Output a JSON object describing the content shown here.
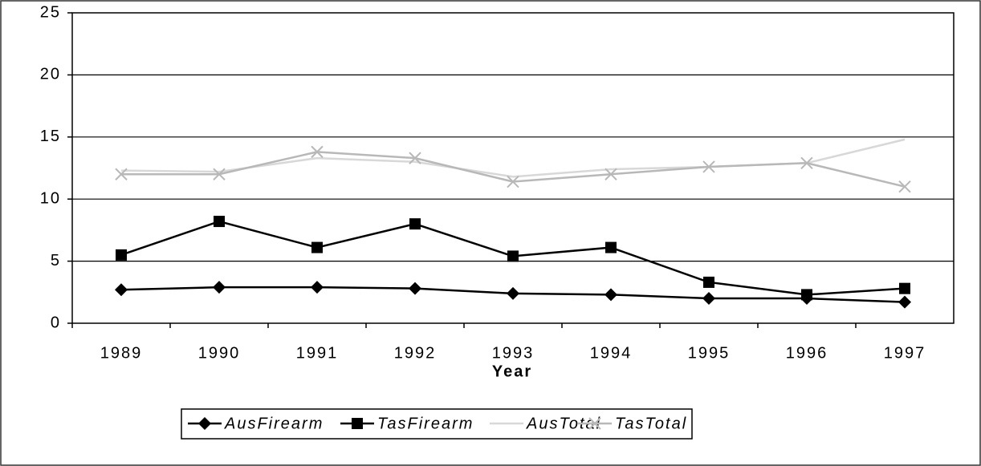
{
  "chart_data": {
    "type": "line",
    "x_label": "Year",
    "categories": [
      "1989",
      "1990",
      "1991",
      "1992",
      "1993",
      "1994",
      "1995",
      "1996",
      "1997"
    ],
    "series": [
      {
        "name": "AusFirearm",
        "color": "#000000",
        "marker": "diamond",
        "values": [
          2.7,
          2.9,
          2.9,
          2.8,
          2.4,
          2.3,
          2.0,
          2.0,
          1.7
        ]
      },
      {
        "name": "TasFirearm",
        "color": "#000000",
        "marker": "square",
        "values": [
          5.5,
          8.2,
          6.1,
          8.0,
          5.4,
          6.1,
          3.3,
          2.3,
          2.8
        ]
      },
      {
        "name": "AusTotal",
        "color": "#d8d8d8",
        "marker": "none",
        "values": [
          12.3,
          12.2,
          13.3,
          13.0,
          11.8,
          12.4,
          12.6,
          12.9,
          14.8
        ]
      },
      {
        "name": "TasTotal",
        "color": "#b8b8b8",
        "marker": "x",
        "values": [
          12.0,
          12.0,
          13.8,
          13.3,
          11.4,
          12.0,
          12.6,
          12.9,
          11.0
        ]
      }
    ],
    "ylim": [
      0,
      25
    ],
    "yticks": [
      0,
      5,
      10,
      15,
      20,
      25
    ],
    "grid": true
  }
}
